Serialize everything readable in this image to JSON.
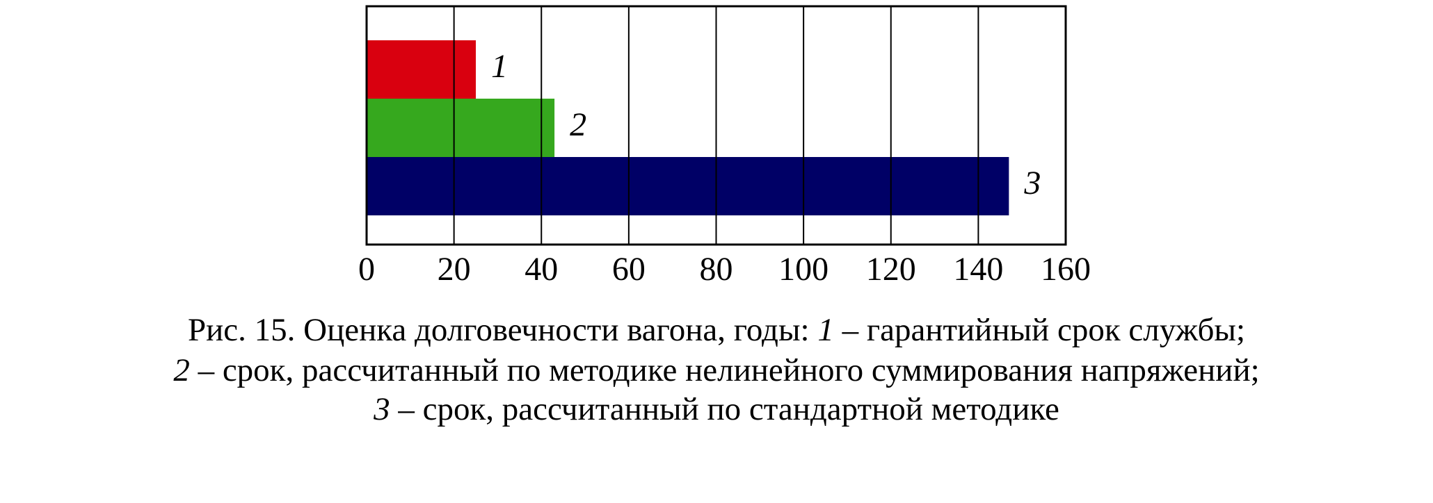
{
  "chart_data": {
    "type": "bar",
    "orientation": "horizontal",
    "categories": [
      "1",
      "2",
      "3"
    ],
    "values": [
      25,
      43,
      147
    ],
    "colors": [
      "#d9000f",
      "#36a81e",
      "#000066"
    ],
    "xlim": [
      0,
      160
    ],
    "xticks": [
      0,
      20,
      40,
      60,
      80,
      100,
      120,
      140,
      160
    ],
    "grid": true
  },
  "caption": {
    "lines": [
      [
        "Рис. 15. Оценка долговечности вагона, годы: ",
        "1",
        " – гарантийный срок службы;"
      ],
      [
        "2",
        " – срок, рассчитанный по методике нелинейного суммирования напряжений;"
      ],
      [
        "3",
        " – срок, рассчитанный по стандартной методике"
      ]
    ]
  }
}
